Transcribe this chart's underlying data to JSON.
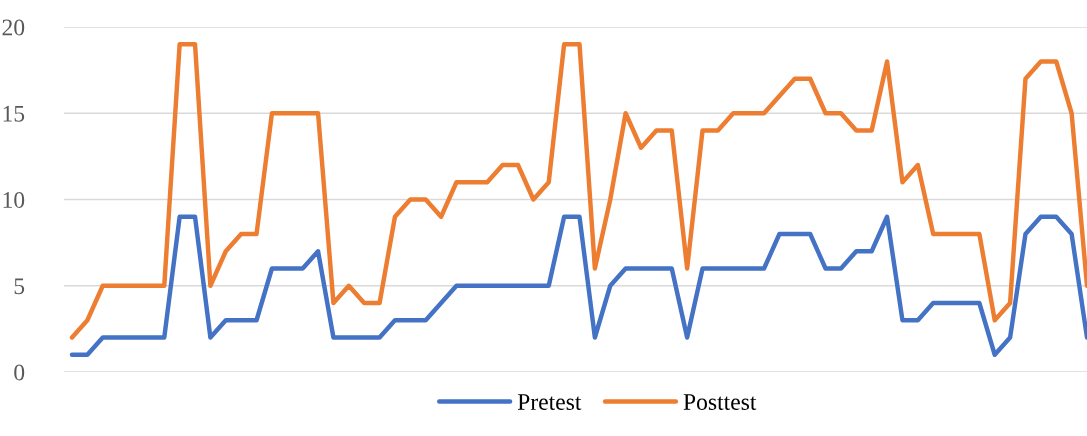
{
  "chart_data": {
    "type": "line",
    "categories": [
      null,
      null,
      null,
      null,
      null,
      null,
      null,
      null,
      null,
      null,
      null,
      null,
      null,
      null,
      null,
      null,
      null,
      null,
      null,
      null,
      null,
      null,
      null,
      null,
      null,
      null,
      null,
      null,
      null,
      null,
      null,
      null,
      null,
      null,
      null,
      null,
      null,
      null,
      null,
      null,
      null,
      null,
      null,
      null,
      null,
      null,
      null,
      null,
      null,
      null,
      null,
      null,
      null,
      null,
      null,
      null,
      null,
      null,
      null,
      null,
      null,
      null,
      null,
      null,
      null,
      null,
      null
    ],
    "series": [
      {
        "name": "Pretest",
        "color": "#4472c4",
        "values": [
          1,
          1,
          2,
          2,
          2,
          2,
          2,
          9,
          9,
          2,
          3,
          3,
          3,
          6,
          6,
          6,
          7,
          2,
          2,
          2,
          2,
          3,
          3,
          3,
          4,
          5,
          5,
          5,
          5,
          5,
          5,
          5,
          9,
          9,
          2,
          5,
          6,
          6,
          6,
          6,
          2,
          6,
          6,
          6,
          6,
          6,
          8,
          8,
          8,
          6,
          6,
          7,
          7,
          9,
          3,
          3,
          4,
          4,
          4,
          4,
          1,
          2,
          8,
          9,
          9,
          8,
          2
        ]
      },
      {
        "name": "Posttest",
        "color": "#ed7d31",
        "values": [
          2,
          3,
          5,
          5,
          5,
          5,
          5,
          19,
          19,
          5,
          7,
          8,
          8,
          15,
          15,
          15,
          15,
          4,
          5,
          4,
          4,
          9,
          10,
          10,
          9,
          11,
          11,
          11,
          12,
          12,
          10,
          11,
          19,
          19,
          6,
          10,
          15,
          13,
          14,
          14,
          6,
          14,
          14,
          15,
          15,
          15,
          16,
          17,
          17,
          15,
          15,
          14,
          14,
          18,
          11,
          12,
          8,
          8,
          8,
          8,
          3,
          4,
          17,
          18,
          18,
          15,
          5
        ]
      }
    ],
    "ylim": [
      0,
      20
    ],
    "yticks": [
      0,
      5,
      10,
      15,
      20
    ],
    "grid": "y",
    "legend": "bottom",
    "marker": "none",
    "line_style": "solid"
  }
}
